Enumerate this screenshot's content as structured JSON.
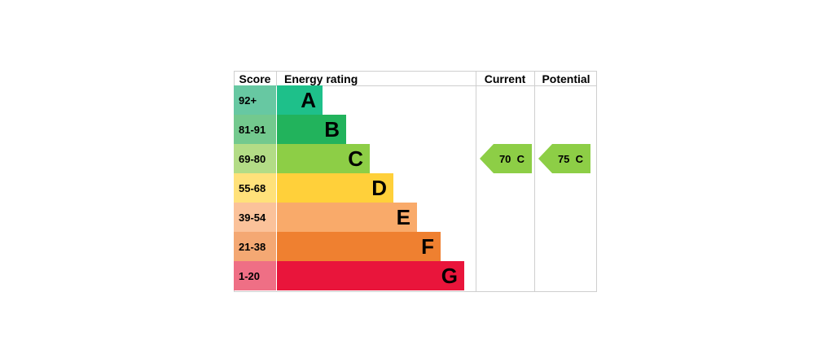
{
  "chart_data": {
    "type": "bar",
    "headers": {
      "score": "Score",
      "energy_rating": "Energy rating",
      "current": "Current",
      "potential": "Potential"
    },
    "bands": [
      {
        "letter": "A",
        "score": "92+",
        "color": "#1ec08a",
        "score_color": "#67c8a2"
      },
      {
        "letter": "B",
        "score": "81-91",
        "color": "#22b35c",
        "score_color": "#73c98e"
      },
      {
        "letter": "C",
        "score": "69-80",
        "color": "#8dce46",
        "score_color": "#b3dc86"
      },
      {
        "letter": "D",
        "score": "55-68",
        "color": "#ffd03a",
        "score_color": "#ffe17a"
      },
      {
        "letter": "E",
        "score": "39-54",
        "color": "#f9aa6a",
        "score_color": "#fbc29a"
      },
      {
        "letter": "F",
        "score": "21-38",
        "color": "#ef8030",
        "score_color": "#f4a873"
      },
      {
        "letter": "G",
        "score": "1-20",
        "color": "#e9153b",
        "score_color": "#ef6f85"
      }
    ],
    "current": {
      "value": 70,
      "band": "C",
      "label": "70  C",
      "color": "#8dce46"
    },
    "potential": {
      "value": 75,
      "band": "C",
      "label": "75  C",
      "color": "#8dce46"
    }
  }
}
